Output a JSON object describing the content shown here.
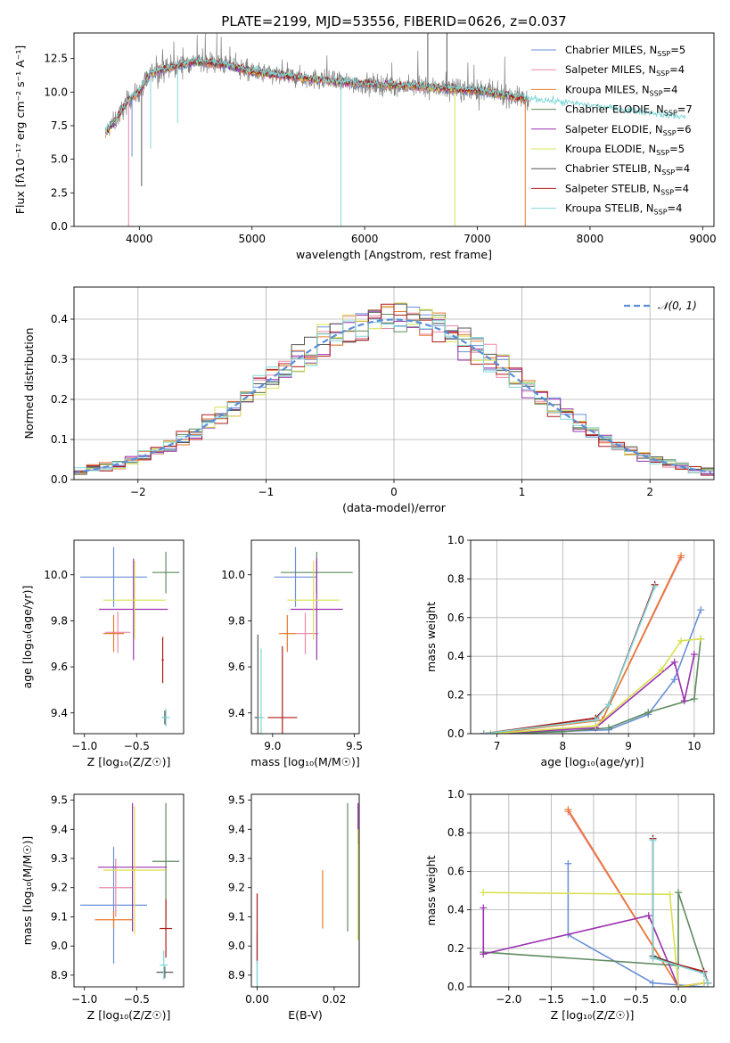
{
  "figure": {
    "colors": {
      "Chabrier MILES": "#6a8fd8",
      "Salpeter MILES": "#e88aa8",
      "Kroupa MILES": "#e87a30",
      "Chabrier ELODIE": "#5e8a5e",
      "Salpeter ELODIE": "#9a30b0",
      "Kroupa ELODIE": "#d8e050",
      "Chabrier STELIB": "#555555",
      "Salpeter STELIB": "#b01818",
      "Kroupa STELIB": "#80d8d8"
    }
  },
  "chart_data": [
    {
      "id": "spectrum",
      "type": "line",
      "title": "PLATE=2199, MJD=53556, FIBERID=0626, z=0.037",
      "xlabel": "wavelength [Angstrom, rest frame]",
      "ylabel": "Flux [fλ10⁻¹⁷ erg cm⁻² s⁻¹ A⁻¹]",
      "xlim": [
        3420,
        9100
      ],
      "ylim": [
        0,
        14.4
      ],
      "xticks": [
        4000,
        5000,
        6000,
        7000,
        8000,
        9000
      ],
      "yticks": [
        0.0,
        2.5,
        5.0,
        7.5,
        10.0,
        12.5
      ],
      "grid": false,
      "legend_position": "top-right",
      "legend": [
        {
          "label": "Chabrier MILES, N",
          "sub": "SSP",
          "n": "=5"
        },
        {
          "label": "Salpeter MILES, N",
          "sub": "SSP",
          "n": "=4"
        },
        {
          "label": "Kroupa MILES, N",
          "sub": "SSP",
          "n": "=4"
        },
        {
          "label": "Chabrier ELODIE, N",
          "sub": "SSP",
          "n": "=7"
        },
        {
          "label": "Salpeter ELODIE, N",
          "sub": "SSP",
          "n": "=6"
        },
        {
          "label": "Kroupa ELODIE, N",
          "sub": "SSP",
          "n": "=5"
        },
        {
          "label": "Chabrier STELIB, N",
          "sub": "SSP",
          "n": "=4"
        },
        {
          "label": "Salpeter STELIB, N",
          "sub": "SSP",
          "n": "=4"
        },
        {
          "label": "Kroupa STELIB, N",
          "sub": "SSP",
          "n": "=4"
        }
      ],
      "continuum": [
        [
          3700,
          7.0
        ],
        [
          3800,
          8.0
        ],
        [
          3900,
          9.4
        ],
        [
          4000,
          10.0
        ],
        [
          4100,
          11.4
        ],
        [
          4300,
          11.9
        ],
        [
          4500,
          12.3
        ],
        [
          4800,
          12.0
        ],
        [
          5000,
          11.5
        ],
        [
          5200,
          11.3
        ],
        [
          5500,
          11.0
        ],
        [
          6000,
          10.6
        ],
        [
          6500,
          10.4
        ],
        [
          7000,
          10.1
        ],
        [
          7500,
          9.4
        ],
        [
          8000,
          8.9
        ],
        [
          8500,
          8.4
        ],
        [
          8850,
          8.0
        ]
      ],
      "spikes": [
        {
          "series": "Salpeter MILES",
          "x": 3905,
          "y": 0.0
        },
        {
          "series": "Chabrier MILES",
          "x": 3935,
          "y": 5.2
        },
        {
          "series": "Kroupa STELIB",
          "x": 4100,
          "y": 5.8
        },
        {
          "series": "Kroupa STELIB",
          "x": 4340,
          "y": 7.7
        },
        {
          "series": "Kroupa STELIB",
          "x": 5790,
          "y": 0.0
        },
        {
          "series": "Kroupa ELODIE",
          "x": 6800,
          "y": 0.0
        },
        {
          "series": "Chabrier STELIB",
          "x": 6560,
          "y": 14.4
        },
        {
          "series": "Chabrier STELIB",
          "x": 6730,
          "y": 14.4
        },
        {
          "series": "Chabrier STELIB",
          "x": 4020,
          "y": 3.0
        },
        {
          "series": "Kroupa MILES",
          "x": 7425,
          "y": 0.0
        }
      ]
    },
    {
      "id": "residual-histogram",
      "type": "step",
      "xlabel": "(data-model)/error",
      "ylabel": "Normed distribution",
      "xlim": [
        -2.5,
        2.5
      ],
      "ylim": [
        0,
        0.48
      ],
      "xticks": [
        -2,
        -1,
        0,
        1,
        2
      ],
      "yticks": [
        0.0,
        0.1,
        0.2,
        0.3,
        0.4
      ],
      "grid": true,
      "legend_position": "top-right",
      "legend": [
        {
          "label": "𝒩(0, 1)"
        }
      ],
      "reference_curve": {
        "name": "𝒩(0, 1)",
        "mean": 0,
        "sigma": 1
      },
      "bin_width": 0.1
    },
    {
      "id": "age-vs-z",
      "type": "errorbar",
      "xlabel": "Z [log₁₀(Z/Z☉)]",
      "ylabel": "age  [log₁₀(age/yr)]",
      "xlim": [
        -1.1,
        -0.05
      ],
      "ylim": [
        9.31,
        10.15
      ],
      "xticks": [
        -1.0,
        -0.5
      ],
      "yticks": [
        9.4,
        9.6,
        9.8,
        10.0
      ],
      "grid": false,
      "points": [
        {
          "series": "Chabrier MILES",
          "x": -0.72,
          "y": 9.99,
          "xerr": 0.32,
          "yerr": 0.13
        },
        {
          "series": "Salpeter MILES",
          "x": -0.68,
          "y": 9.75,
          "xerr": 0.12,
          "yerr": 0.09
        },
        {
          "series": "Kroupa MILES",
          "x": -0.72,
          "y": 9.745,
          "xerr": 0.1,
          "yerr": 0.08
        },
        {
          "series": "Chabrier ELODIE",
          "x": -0.22,
          "y": 10.01,
          "xerr": 0.13,
          "yerr": 0.09
        },
        {
          "series": "Salpeter ELODIE",
          "x": -0.53,
          "y": 9.85,
          "xerr": 0.33,
          "yerr": 0.22
        },
        {
          "series": "Kroupa ELODIE",
          "x": -0.52,
          "y": 9.89,
          "xerr": 0.3,
          "yerr": 0.17
        },
        {
          "series": "Chabrier STELIB",
          "x": -0.23,
          "y": 9.38,
          "xerr": 0.03,
          "yerr": 0.03
        },
        {
          "series": "Salpeter STELIB",
          "x": -0.25,
          "y": 9.63,
          "xerr": 0.01,
          "yerr": 0.1
        },
        {
          "series": "Kroupa STELIB",
          "x": -0.22,
          "y": 9.38,
          "xerr": 0.04,
          "yerr": 0.04
        }
      ]
    },
    {
      "id": "age-vs-mass",
      "type": "errorbar",
      "xlabel": "mass [log₁₀(M/M☉)]",
      "ylabel": "",
      "xlim": [
        8.87,
        9.53
      ],
      "ylim": [
        9.31,
        10.15
      ],
      "xticks": [
        9.0,
        9.5
      ],
      "yticks": [
        9.4,
        9.6,
        9.8,
        10.0
      ],
      "grid": false,
      "points": [
        {
          "series": "Chabrier MILES",
          "x": 9.14,
          "y": 9.99,
          "xerr": 0.13,
          "yerr": 0.13
        },
        {
          "series": "Salpeter MILES",
          "x": 9.2,
          "y": 9.745,
          "xerr": 0.08,
          "yerr": 0.09
        },
        {
          "series": "Kroupa MILES",
          "x": 9.09,
          "y": 9.745,
          "xerr": 0.05,
          "yerr": 0.08
        },
        {
          "series": "Chabrier ELODIE",
          "x": 9.27,
          "y": 10.01,
          "xerr": 0.22,
          "yerr": 0.09
        },
        {
          "series": "Salpeter ELODIE",
          "x": 9.27,
          "y": 9.85,
          "xerr": 0.16,
          "yerr": 0.22
        },
        {
          "series": "Kroupa ELODIE",
          "x": 9.25,
          "y": 9.89,
          "xerr": 0.16,
          "yerr": 0.17
        },
        {
          "series": "Chabrier STELIB",
          "x": 8.91,
          "y": 9.38,
          "xerr": 0.02,
          "yerr": 0.36
        },
        {
          "series": "Salpeter STELIB",
          "x": 9.06,
          "y": 9.38,
          "xerr": 0.09,
          "yerr": 0.31
        },
        {
          "series": "Kroupa STELIB",
          "x": 8.93,
          "y": 9.38,
          "xerr": 0.02,
          "yerr": 0.3
        }
      ]
    },
    {
      "id": "weight-vs-age",
      "type": "line",
      "xlabel": "age  [log₁₀(age/yr)]",
      "ylabel": "mass weight",
      "xlim": [
        6.6,
        10.3
      ],
      "ylim": [
        0,
        1.0
      ],
      "xticks": [
        7,
        8,
        9,
        10
      ],
      "yticks": [
        0.0,
        0.2,
        0.4,
        0.6,
        0.8,
        1.0
      ],
      "grid": true,
      "series": [
        {
          "name": "Chabrier MILES",
          "points": [
            [
              6.8,
              0.0
            ],
            [
              8.7,
              0.02
            ],
            [
              9.3,
              0.1
            ],
            [
              9.7,
              0.28
            ],
            [
              10.1,
              0.64
            ]
          ]
        },
        {
          "name": "Salpeter MILES",
          "points": [
            [
              6.8,
              0.0
            ],
            [
              8.6,
              0.07
            ],
            [
              9.8,
              0.91
            ]
          ]
        },
        {
          "name": "Kroupa MILES",
          "points": [
            [
              6.9,
              0.0
            ],
            [
              8.6,
              0.07
            ],
            [
              9.8,
              0.92
            ]
          ]
        },
        {
          "name": "Chabrier ELODIE",
          "points": [
            [
              6.9,
              0.0
            ],
            [
              8.0,
              0.01
            ],
            [
              8.7,
              0.03
            ],
            [
              9.3,
              0.11
            ],
            [
              10.0,
              0.18
            ],
            [
              10.1,
              0.49
            ]
          ]
        },
        {
          "name": "Salpeter ELODIE",
          "points": [
            [
              6.9,
              0.0
            ],
            [
              8.5,
              0.03
            ],
            [
              9.7,
              0.37
            ],
            [
              9.85,
              0.17
            ],
            [
              10.0,
              0.41
            ]
          ]
        },
        {
          "name": "Kroupa ELODIE",
          "points": [
            [
              6.9,
              0.0
            ],
            [
              8.5,
              0.04
            ],
            [
              9.5,
              0.33
            ],
            [
              9.8,
              0.48
            ],
            [
              10.1,
              0.49
            ]
          ]
        },
        {
          "name": "Chabrier STELIB",
          "points": [
            [
              6.8,
              0.0
            ],
            [
              8.5,
              0.08
            ],
            [
              8.7,
              0.15
            ],
            [
              9.4,
              0.77
            ]
          ]
        },
        {
          "name": "Salpeter STELIB",
          "points": [
            [
              6.8,
              0.0
            ],
            [
              8.5,
              0.08
            ],
            [
              8.7,
              0.15
            ],
            [
              9.4,
              0.77
            ]
          ]
        },
        {
          "name": "Kroupa STELIB",
          "points": [
            [
              6.8,
              0.0
            ],
            [
              8.5,
              0.07
            ],
            [
              8.7,
              0.15
            ],
            [
              9.4,
              0.76
            ]
          ]
        }
      ]
    },
    {
      "id": "mass-vs-z",
      "type": "errorbar",
      "xlabel": "Z [log₁₀(Z/Z☉)]",
      "ylabel": "mass [log₁₀(M/M☉)]",
      "xlim": [
        -1.1,
        -0.05
      ],
      "ylim": [
        8.86,
        9.52
      ],
      "xticks": [
        -1.0,
        -0.5
      ],
      "yticks": [
        8.9,
        9.0,
        9.1,
        9.2,
        9.3,
        9.4,
        9.5
      ],
      "grid": false,
      "points": [
        {
          "series": "Chabrier MILES",
          "x": -0.72,
          "y": 9.14,
          "xerr": 0.32,
          "yerr": 0.2
        },
        {
          "series": "Salpeter MILES",
          "x": -0.7,
          "y": 9.2,
          "xerr": 0.16,
          "yerr": 0.1
        },
        {
          "series": "Kroupa MILES",
          "x": -0.72,
          "y": 9.09,
          "xerr": 0.18,
          "yerr": 0.03
        },
        {
          "series": "Chabrier ELODIE",
          "x": -0.22,
          "y": 9.29,
          "xerr": 0.13,
          "yerr": 0.2
        },
        {
          "series": "Salpeter ELODIE",
          "x": -0.54,
          "y": 9.27,
          "xerr": 0.33,
          "yerr": 0.22
        },
        {
          "series": "Kroupa ELODIE",
          "x": -0.52,
          "y": 9.26,
          "xerr": 0.3,
          "yerr": 0.22
        },
        {
          "series": "Chabrier STELIB",
          "x": -0.23,
          "y": 8.91,
          "xerr": 0.08,
          "yerr": 0.02
        },
        {
          "series": "Salpeter STELIB",
          "x": -0.22,
          "y": 9.06,
          "xerr": 0.06,
          "yerr": 0.1
        },
        {
          "series": "Kroupa STELIB",
          "x": -0.24,
          "y": 8.935,
          "xerr": 0.04,
          "yerr": 0.05
        }
      ]
    },
    {
      "id": "mass-vs-ebv",
      "type": "errorbar",
      "xlabel": "E(B-V)",
      "ylabel": "",
      "xlim": [
        -0.0015,
        0.0265
      ],
      "ylim": [
        8.86,
        9.52
      ],
      "xticks": [
        0.0,
        0.02
      ],
      "yticks": [
        8.9,
        9.0,
        9.1,
        9.2,
        9.3,
        9.4,
        9.5
      ],
      "grid": false,
      "points": [
        {
          "series": "Chabrier MILES",
          "x": 0.0,
          "y": 8.95,
          "xerr": 0,
          "yerr": 0.1
        },
        {
          "series": "Salpeter STELIB",
          "x": 0.0,
          "y": 9.06,
          "xerr": 0,
          "yerr": 0.12
        },
        {
          "series": "Kroupa MILES",
          "x": 0.017,
          "y": 9.16,
          "xerr": 0,
          "yerr": 0.1
        },
        {
          "series": "Chabrier ELODIE",
          "x": 0.0235,
          "y": 9.27,
          "xerr": 0,
          "yerr": 0.22
        },
        {
          "series": "Salpeter ELODIE",
          "x": 0.0262,
          "y": 9.42,
          "xerr": 0,
          "yerr": 0.07
        },
        {
          "series": "Kroupa ELODIE",
          "x": 0.0262,
          "y": 9.21,
          "xerr": 0,
          "yerr": 0.19
        },
        {
          "series": "Kroupa STELIB",
          "x": 0.0,
          "y": 8.9,
          "xerr": 0,
          "yerr": 0.05
        }
      ]
    },
    {
      "id": "weight-vs-z",
      "type": "line",
      "xlabel": "Z [log₁₀(Z/Z☉)]",
      "ylabel": "mass weight",
      "xlim": [
        -2.45,
        0.42
      ],
      "ylim": [
        0,
        1.0
      ],
      "xticks": [
        -2.0,
        -1.5,
        -1.0,
        -0.5,
        0.0
      ],
      "yticks": [
        0.0,
        0.2,
        0.4,
        0.6,
        0.8,
        1.0
      ],
      "grid": true,
      "series": [
        {
          "name": "Chabrier MILES",
          "points": [
            [
              -1.3,
              0.64
            ],
            [
              -1.3,
              0.27
            ],
            [
              -0.3,
              0.02
            ],
            [
              0.3,
              0.0
            ]
          ]
        },
        {
          "name": "Salpeter MILES",
          "points": [
            [
              -1.3,
              0.91
            ],
            [
              0.0,
              0.0
            ],
            [
              0.3,
              0.02
            ]
          ]
        },
        {
          "name": "Kroupa MILES",
          "points": [
            [
              -1.3,
              0.92
            ],
            [
              0.0,
              0.0
            ],
            [
              0.3,
              0.02
            ]
          ]
        },
        {
          "name": "Chabrier ELODIE",
          "points": [
            [
              -2.3,
              0.18
            ],
            [
              0.0,
              0.11
            ],
            [
              0.0,
              0.49
            ],
            [
              0.35,
              0.02
            ]
          ]
        },
        {
          "name": "Salpeter ELODIE",
          "points": [
            [
              -2.3,
              0.41
            ],
            [
              -2.3,
              0.17
            ],
            [
              -0.35,
              0.37
            ],
            [
              0.0,
              0.0
            ],
            [
              0.3,
              0.02
            ]
          ]
        },
        {
          "name": "Kroupa ELODIE",
          "points": [
            [
              -2.3,
              0.49
            ],
            [
              -0.1,
              0.48
            ],
            [
              0.0,
              0.0
            ],
            [
              0.3,
              0.02
            ]
          ]
        },
        {
          "name": "Chabrier STELIB",
          "points": [
            [
              -0.3,
              0.77
            ],
            [
              -0.3,
              0.16
            ],
            [
              0.3,
              0.07
            ],
            [
              0.35,
              0.02
            ]
          ]
        },
        {
          "name": "Salpeter STELIB",
          "points": [
            [
              -0.3,
              0.77
            ],
            [
              -0.3,
              0.15
            ],
            [
              0.3,
              0.08
            ],
            [
              0.35,
              0.02
            ]
          ]
        },
        {
          "name": "Kroupa STELIB",
          "points": [
            [
              -0.3,
              0.76
            ],
            [
              -0.3,
              0.15
            ],
            [
              0.3,
              0.07
            ],
            [
              0.35,
              0.02
            ]
          ]
        }
      ]
    }
  ]
}
